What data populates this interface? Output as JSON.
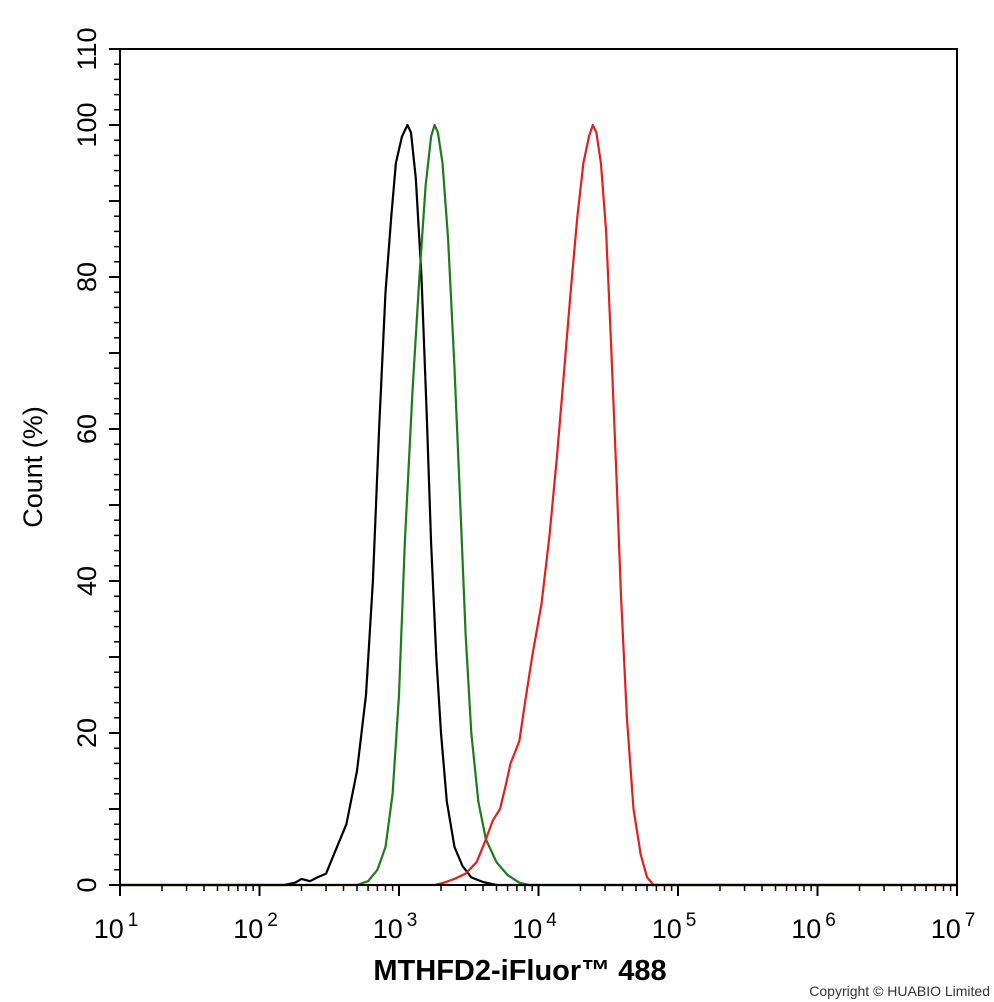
{
  "chart_data": {
    "type": "line",
    "xlabel": "MTHFD2-iFluor™ 488",
    "ylabel": "Count  (%)",
    "x_scale": "log",
    "xlim": [
      10,
      10000000
    ],
    "ylim": [
      0,
      110
    ],
    "x_tick_base": "10",
    "x_tick_exponents": [
      "1",
      "2",
      "3",
      "4",
      "5",
      "6",
      "7"
    ],
    "y_ticks": [
      0,
      20,
      40,
      60,
      80,
      100,
      110
    ],
    "grid": false,
    "series": [
      {
        "color": "#000000",
        "points": [
          [
            10,
            0
          ],
          [
            150,
            0
          ],
          [
            180,
            0.3
          ],
          [
            200,
            0.8
          ],
          [
            230,
            0.5
          ],
          [
            260,
            1
          ],
          [
            300,
            1.5
          ],
          [
            350,
            4.5
          ],
          [
            420,
            8
          ],
          [
            500,
            15
          ],
          [
            580,
            25
          ],
          [
            650,
            40
          ],
          [
            720,
            60
          ],
          [
            800,
            78
          ],
          [
            880,
            88
          ],
          [
            950,
            95
          ],
          [
            1050,
            98.5
          ],
          [
            1150,
            100
          ],
          [
            1220,
            99
          ],
          [
            1320,
            93
          ],
          [
            1450,
            80
          ],
          [
            1580,
            62
          ],
          [
            1700,
            45
          ],
          [
            1850,
            30
          ],
          [
            2000,
            20
          ],
          [
            2200,
            11
          ],
          [
            2500,
            5
          ],
          [
            2850,
            2.5
          ],
          [
            3300,
            1
          ],
          [
            4000,
            0.4
          ],
          [
            5000,
            0
          ],
          [
            10000000,
            0
          ]
        ]
      },
      {
        "color": "#1e7a1e",
        "points": [
          [
            10,
            0
          ],
          [
            500,
            0
          ],
          [
            600,
            0.5
          ],
          [
            700,
            2
          ],
          [
            800,
            5
          ],
          [
            900,
            12
          ],
          [
            1000,
            25
          ],
          [
            1100,
            45
          ],
          [
            1250,
            65
          ],
          [
            1400,
            80
          ],
          [
            1550,
            92
          ],
          [
            1700,
            98.5
          ],
          [
            1800,
            100
          ],
          [
            1900,
            99
          ],
          [
            2050,
            95
          ],
          [
            2250,
            85
          ],
          [
            2500,
            68
          ],
          [
            2750,
            50
          ],
          [
            3000,
            33
          ],
          [
            3300,
            20
          ],
          [
            3700,
            11
          ],
          [
            4200,
            6
          ],
          [
            5000,
            3
          ],
          [
            6000,
            1.3
          ],
          [
            7300,
            0.3
          ],
          [
            8500,
            0
          ],
          [
            10000000,
            0
          ]
        ]
      },
      {
        "color": "#e41e1e",
        "points": [
          [
            10,
            0
          ],
          [
            1800,
            0
          ],
          [
            2100,
            0.3
          ],
          [
            2500,
            0.8
          ],
          [
            3000,
            1.5
          ],
          [
            3600,
            3
          ],
          [
            4200,
            6
          ],
          [
            4700,
            8.5
          ],
          [
            5300,
            10
          ],
          [
            5800,
            13
          ],
          [
            6300,
            16
          ],
          [
            6800,
            17.5
          ],
          [
            7300,
            19
          ],
          [
            8000,
            24
          ],
          [
            9000,
            30
          ],
          [
            10500,
            37
          ],
          [
            12000,
            46
          ],
          [
            13500,
            56
          ],
          [
            15000,
            66
          ],
          [
            17000,
            78
          ],
          [
            19000,
            88
          ],
          [
            21000,
            95
          ],
          [
            23000,
            98.5
          ],
          [
            24500,
            100
          ],
          [
            26000,
            99
          ],
          [
            28000,
            95
          ],
          [
            30500,
            86
          ],
          [
            33000,
            72
          ],
          [
            36000,
            55
          ],
          [
            39000,
            38
          ],
          [
            43000,
            22
          ],
          [
            48000,
            10
          ],
          [
            54000,
            4
          ],
          [
            60000,
            1
          ],
          [
            67000,
            0
          ],
          [
            10000000,
            0
          ]
        ]
      }
    ]
  },
  "footer": {
    "copyright": "Copyright © HUABIO Limited"
  }
}
